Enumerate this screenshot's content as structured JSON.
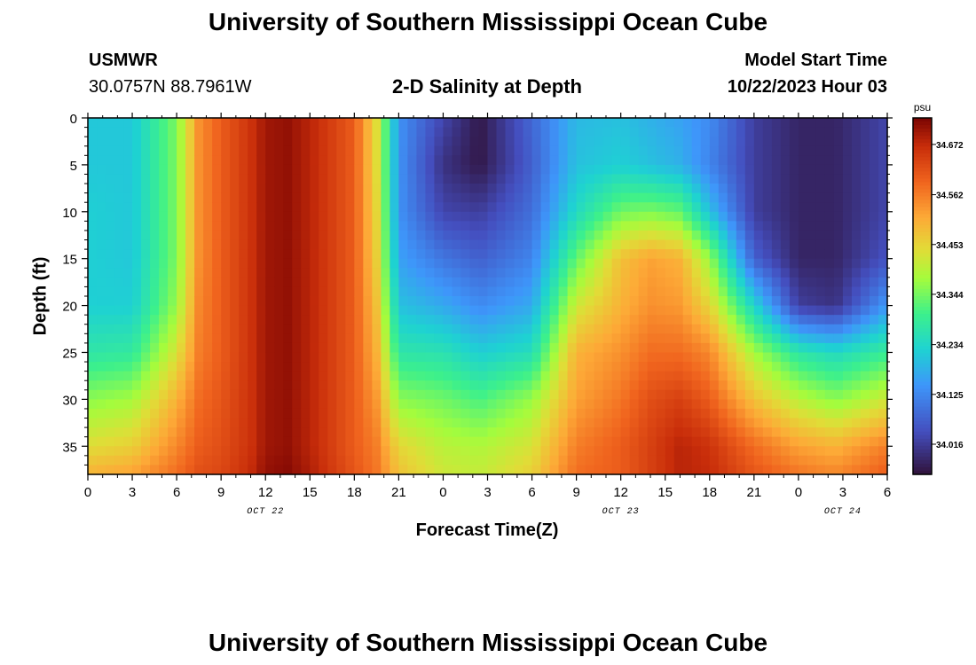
{
  "page": {
    "title": "University of Southern Mississippi Ocean Cube",
    "title_bottom": "University of Southern Mississippi Ocean Cube",
    "station": "USMWR",
    "coords": "30.0757N  88.7961W",
    "plot_title": "2-D Salinity at Depth",
    "model_label": "Model Start Time",
    "model_time": "10/22/2023 Hour 03"
  },
  "chart_data": {
    "type": "heatmap",
    "title": "2-D Salinity at Depth",
    "xlabel": "Forecast Time(Z)",
    "ylabel": "Depth (ft)",
    "x_tick_labels": [
      "0",
      "3",
      "6",
      "9",
      "12",
      "15",
      "18",
      "21",
      "0",
      "3",
      "6",
      "9",
      "12",
      "15",
      "18",
      "21",
      "0",
      "3",
      "6"
    ],
    "x_range_hours": [
      0,
      54
    ],
    "date_labels": [
      {
        "text": "OCT 22",
        "hour": 12
      },
      {
        "text": "OCT 23",
        "hour": 36
      },
      {
        "text": "OCT 24",
        "hour": 51
      }
    ],
    "y_ticks": [
      0,
      5,
      10,
      15,
      20,
      25,
      30,
      35
    ],
    "y_range_ft": [
      0,
      38
    ],
    "colorbar": {
      "unit": "psu",
      "ticks": [
        "34.672",
        "34.562",
        "34.453",
        "34.344",
        "34.234",
        "34.125",
        "34.016"
      ],
      "range": [
        33.95,
        34.73
      ]
    },
    "grid": {
      "x_hours": [
        0,
        3,
        6,
        7.5,
        9,
        11,
        12,
        13.5,
        15,
        18,
        19.5,
        21,
        24,
        26.5,
        30,
        33,
        36,
        38,
        40,
        42,
        45,
        48,
        50.5,
        54
      ],
      "y_ft": [
        0,
        5,
        10,
        15,
        20,
        25,
        30,
        35,
        38
      ],
      "values": [
        [
          34.21,
          34.21,
          34.22,
          34.22,
          34.22,
          34.27,
          34.36,
          34.44,
          34.5
        ],
        [
          34.21,
          34.21,
          34.21,
          34.21,
          34.22,
          34.28,
          34.38,
          34.46,
          34.52
        ],
        [
          34.35,
          34.35,
          34.35,
          34.35,
          34.37,
          34.43,
          34.5,
          34.55,
          34.58
        ],
        [
          34.54,
          34.54,
          34.54,
          34.54,
          34.55,
          34.56,
          34.58,
          34.6,
          34.62
        ],
        [
          34.6,
          34.6,
          34.6,
          34.6,
          34.6,
          34.6,
          34.61,
          34.62,
          34.63
        ],
        [
          34.66,
          34.66,
          34.66,
          34.66,
          34.66,
          34.66,
          34.66,
          34.66,
          34.67
        ],
        [
          34.7,
          34.7,
          34.7,
          34.7,
          34.7,
          34.7,
          34.7,
          34.7,
          34.71
        ],
        [
          34.71,
          34.71,
          34.71,
          34.71,
          34.71,
          34.71,
          34.71,
          34.71,
          34.72
        ],
        [
          34.68,
          34.68,
          34.68,
          34.68,
          34.68,
          34.68,
          34.68,
          34.68,
          34.69
        ],
        [
          34.6,
          34.6,
          34.6,
          34.6,
          34.6,
          34.6,
          34.6,
          34.6,
          34.61
        ],
        [
          34.44,
          34.44,
          34.45,
          34.46,
          34.48,
          34.5,
          34.53,
          34.56,
          34.57
        ],
        [
          34.14,
          34.14,
          34.14,
          34.16,
          34.2,
          34.27,
          34.36,
          34.45,
          34.48
        ],
        [
          34.03,
          34.0,
          34.03,
          34.1,
          34.17,
          34.26,
          34.34,
          34.4,
          34.42
        ],
        [
          33.96,
          33.96,
          34.02,
          34.07,
          34.13,
          34.22,
          34.31,
          34.39,
          34.41
        ],
        [
          34.08,
          34.07,
          34.09,
          34.12,
          34.17,
          34.25,
          34.37,
          34.43,
          34.46
        ],
        [
          34.19,
          34.2,
          34.24,
          34.33,
          34.42,
          34.5,
          34.52,
          34.56,
          34.58
        ],
        [
          34.2,
          34.22,
          34.34,
          34.48,
          34.5,
          34.54,
          34.57,
          34.6,
          34.6
        ],
        [
          34.18,
          34.2,
          34.35,
          34.52,
          34.54,
          34.58,
          34.62,
          34.64,
          34.64
        ],
        [
          34.16,
          34.18,
          34.33,
          34.5,
          34.53,
          34.58,
          34.64,
          34.68,
          34.68
        ],
        [
          34.13,
          34.12,
          34.2,
          34.37,
          34.45,
          34.55,
          34.6,
          34.66,
          34.67
        ],
        [
          34.02,
          34.02,
          34.02,
          34.07,
          34.23,
          34.38,
          34.48,
          34.58,
          34.61
        ],
        [
          33.98,
          33.98,
          33.98,
          33.98,
          34.02,
          34.27,
          34.4,
          34.52,
          34.57
        ],
        [
          33.98,
          33.98,
          33.98,
          33.98,
          34.0,
          34.24,
          34.36,
          34.5,
          34.55
        ],
        [
          34.03,
          34.03,
          34.03,
          34.05,
          34.15,
          34.29,
          34.42,
          34.56,
          34.6
        ]
      ]
    }
  }
}
